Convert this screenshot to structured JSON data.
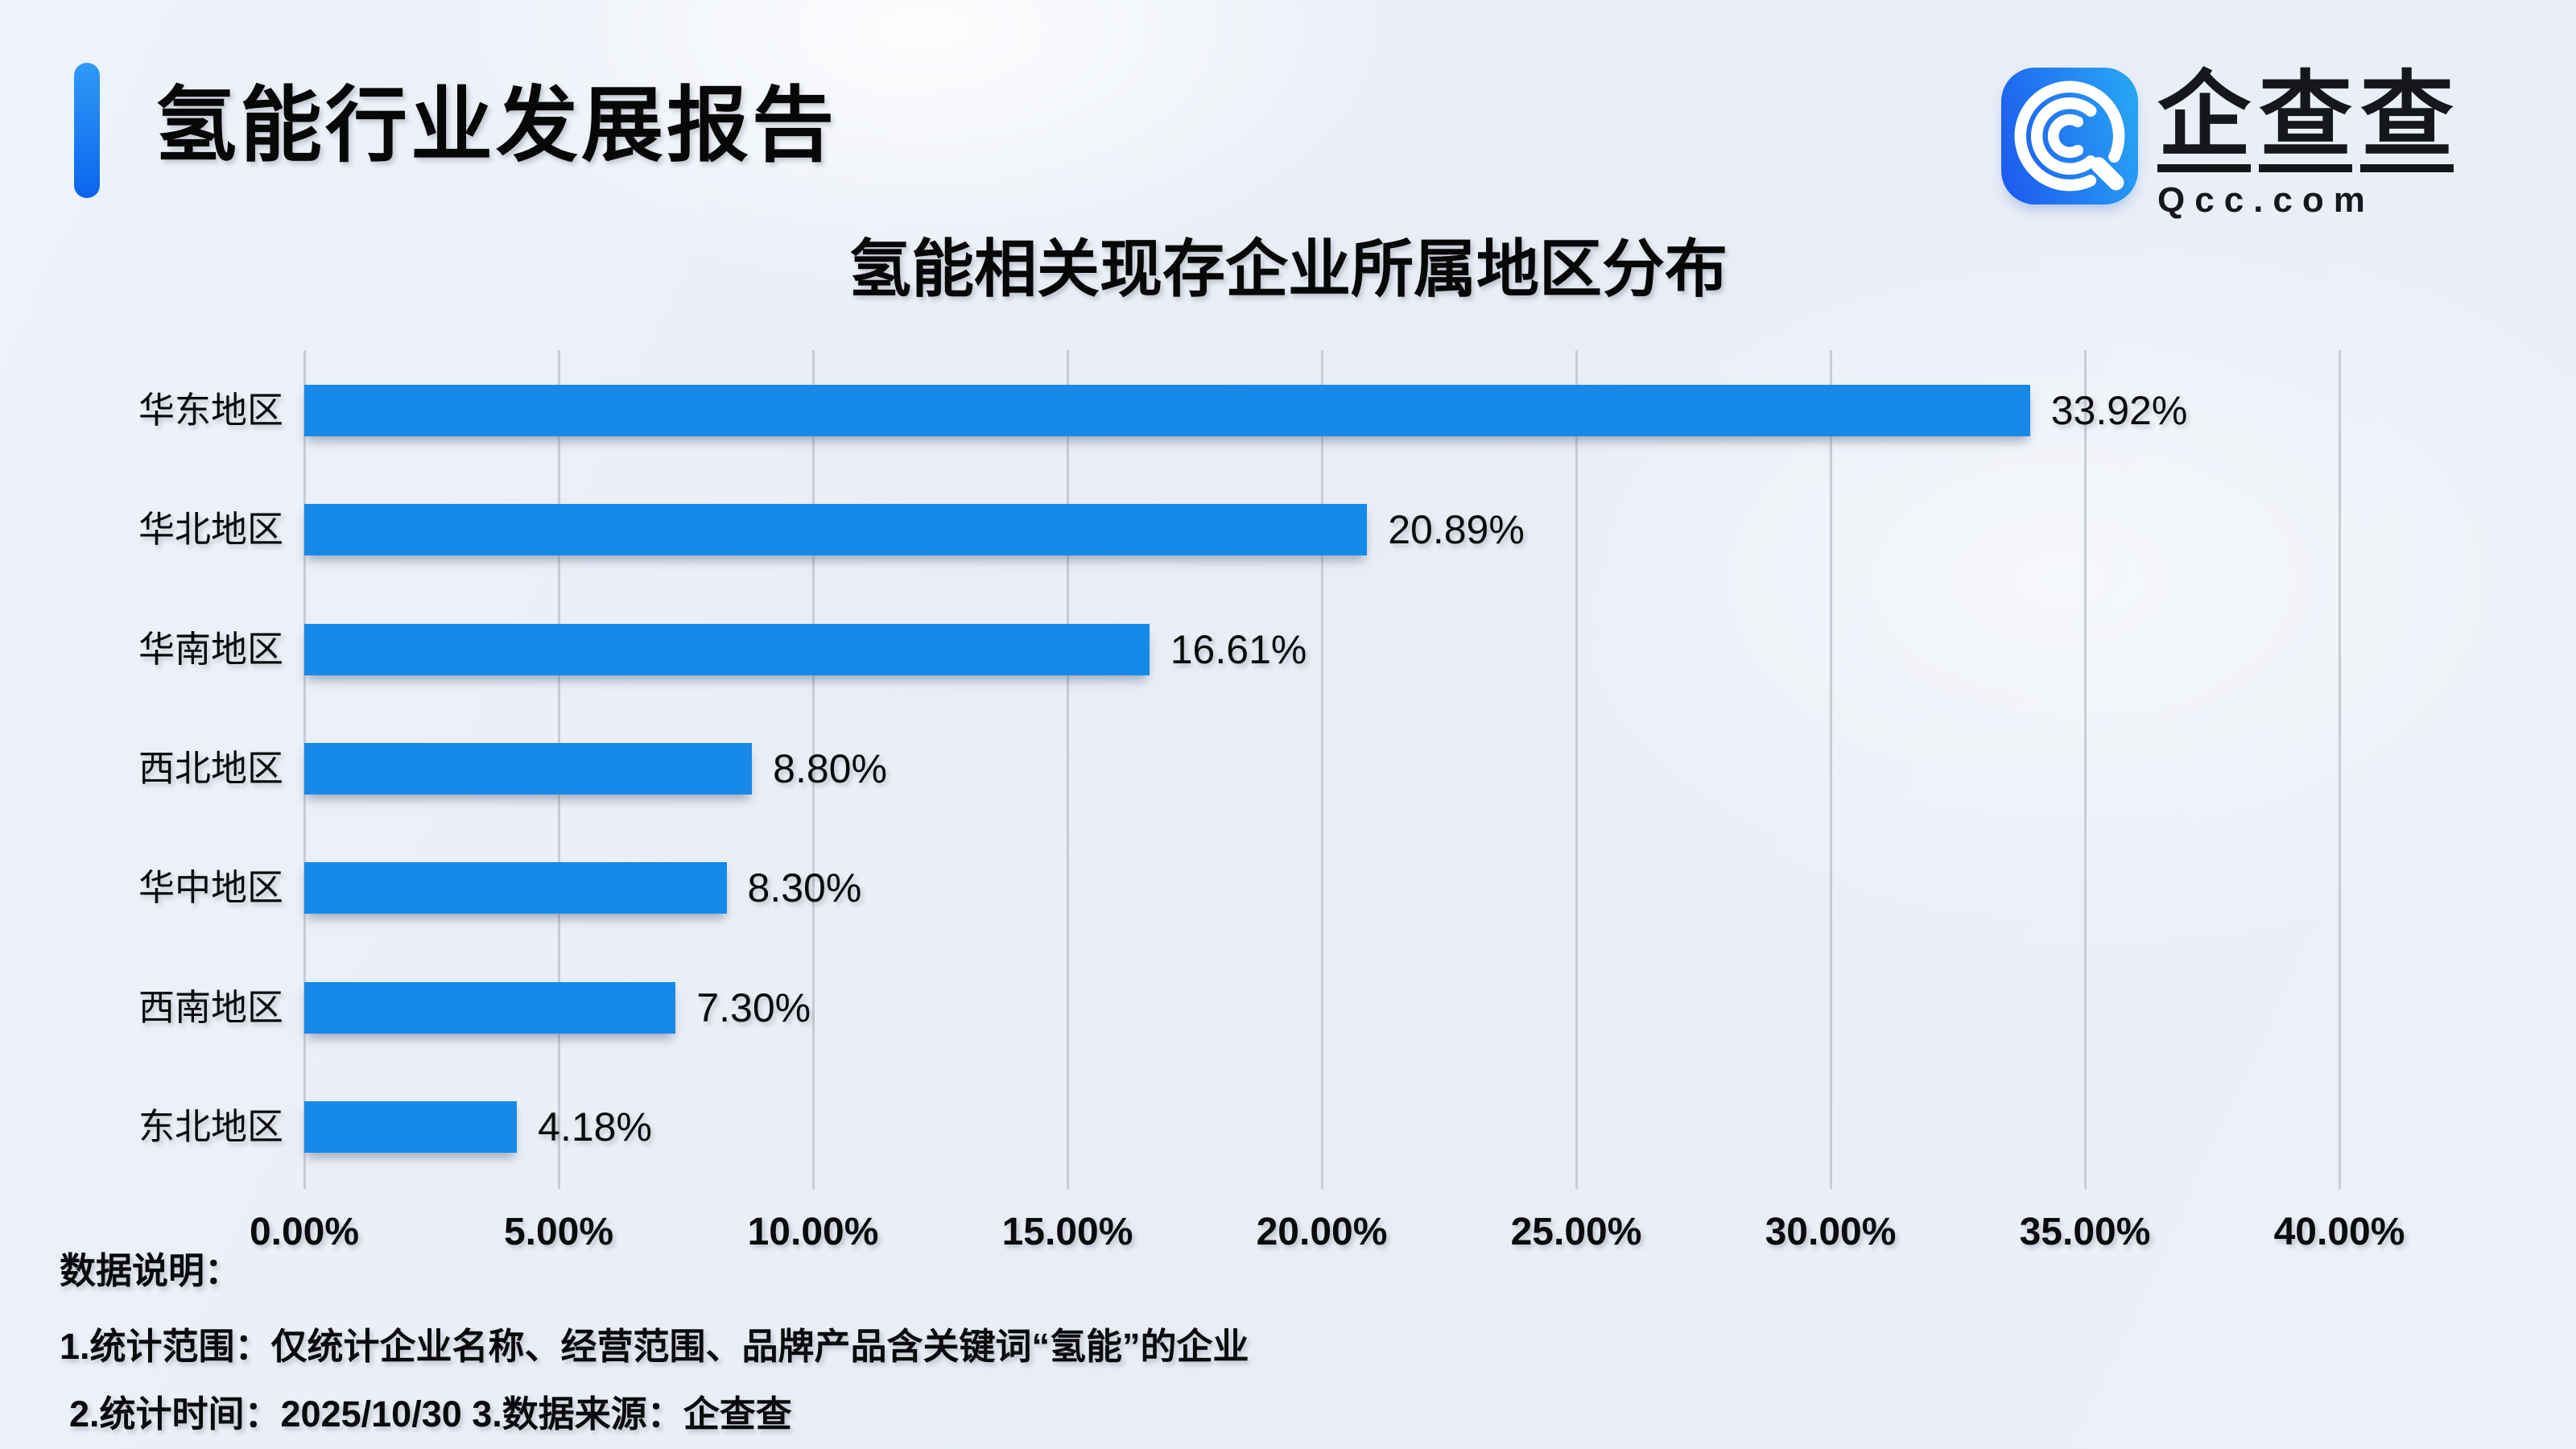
{
  "header": {
    "report_title": "氢能行业发展报告",
    "accent_color": "#0d6ef0"
  },
  "logo": {
    "icon": "qcc-magnifier-icon",
    "brand_cn": "企查查",
    "brand_en": "Qcc.com",
    "square_gradient": [
      "#1c58ef",
      "#28aaf5"
    ]
  },
  "chart_data": {
    "type": "bar",
    "orientation": "horizontal",
    "title": "氢能相关现存企业所属地区分布",
    "categories": [
      "华东地区",
      "华北地区",
      "华南地区",
      "西北地区",
      "华中地区",
      "西南地区",
      "东北地区"
    ],
    "values": [
      33.92,
      20.89,
      16.61,
      8.8,
      8.3,
      7.3,
      4.18
    ],
    "value_labels": [
      "33.92%",
      "20.89%",
      "16.61%",
      "8.80%",
      "8.30%",
      "7.30%",
      "4.18%"
    ],
    "x_ticks": [
      "0.00%",
      "5.00%",
      "10.00%",
      "15.00%",
      "20.00%",
      "25.00%",
      "30.00%",
      "35.00%",
      "40.00%"
    ],
    "x_tick_values": [
      0,
      5,
      10,
      15,
      20,
      25,
      30,
      35,
      40
    ],
    "xlim": [
      0,
      40
    ],
    "xlabel": "",
    "ylabel": "",
    "grid": true,
    "legend": false,
    "bar_color": "#1789e9",
    "gridline_color": "#c9ccd4"
  },
  "notes": {
    "heading": "数据说明：",
    "line1": "1.统计范围：仅统计企业名称、经营范围、品牌产品含关键词“氢能”的企业",
    "line2": "2.统计时间：2025/10/30 3.数据来源：企查查"
  }
}
